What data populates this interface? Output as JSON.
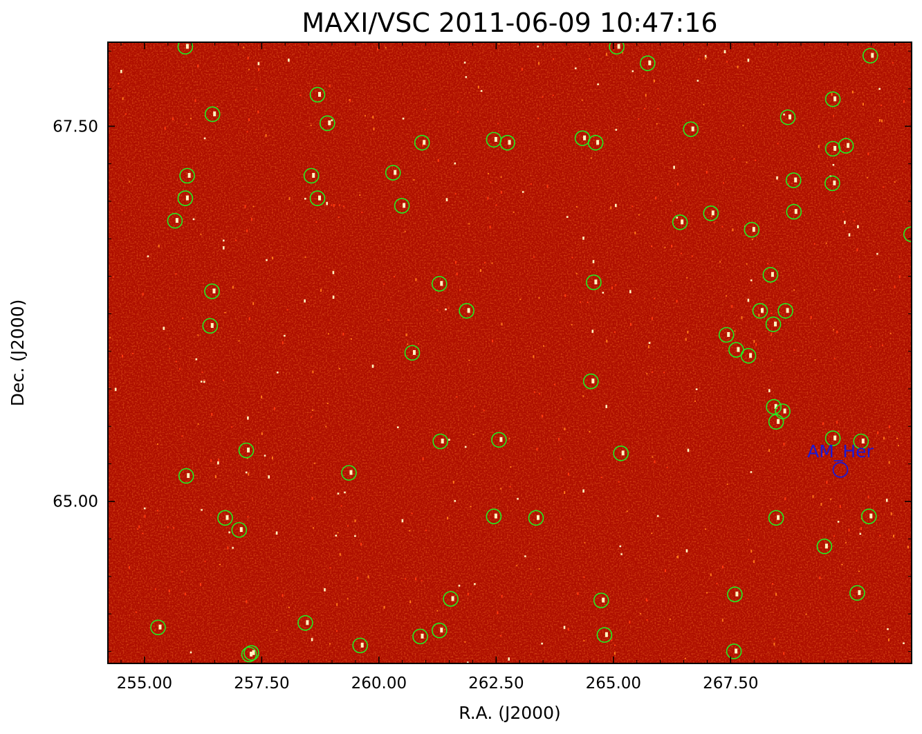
{
  "title": "MAXI/VSC 2011-06-09 10:47:16",
  "xlabel": "R.A. (J2000)",
  "ylabel": "Dec. (J2000)",
  "colors": {
    "background_field": "#b01000",
    "marker_default": "#22ee22",
    "marker_highlight": "#1a1ad8",
    "hot_pixel": "#fff5c0"
  },
  "chart_data": {
    "type": "scatter",
    "xlim": [
      254.22,
      271.36
    ],
    "ylim": [
      63.92,
      68.06
    ],
    "x_ticks": [
      {
        "value": 255.0,
        "label": "255.00"
      },
      {
        "value": 257.5,
        "label": "257.50"
      },
      {
        "value": 260.0,
        "label": "260.00"
      },
      {
        "value": 262.5,
        "label": "262.50"
      },
      {
        "value": 265.0,
        "label": "265.00"
      },
      {
        "value": 267.5,
        "label": "267.50"
      }
    ],
    "y_ticks": [
      {
        "value": 65.0,
        "label": "65.00"
      },
      {
        "value": 67.5,
        "label": "67.50"
      }
    ],
    "labeled_sources": [
      {
        "name": "AM_Her",
        "ra": 269.84,
        "dec": 65.21
      }
    ],
    "catalog_sources": [
      [
        255.87,
        68.03
      ],
      [
        256.45,
        67.58
      ],
      [
        258.69,
        67.71
      ],
      [
        258.9,
        67.52
      ],
      [
        260.92,
        67.39
      ],
      [
        262.45,
        67.41
      ],
      [
        262.74,
        67.39
      ],
      [
        264.34,
        67.42
      ],
      [
        264.62,
        67.39
      ],
      [
        265.07,
        68.03
      ],
      [
        265.73,
        67.92
      ],
      [
        266.65,
        67.48
      ],
      [
        268.72,
        67.56
      ],
      [
        269.68,
        67.68
      ],
      [
        269.68,
        67.35
      ],
      [
        269.96,
        67.37
      ],
      [
        270.48,
        67.97
      ],
      [
        255.91,
        67.17
      ],
      [
        255.87,
        67.02
      ],
      [
        255.65,
        66.87
      ],
      [
        258.56,
        67.17
      ],
      [
        258.69,
        67.02
      ],
      [
        260.3,
        67.19
      ],
      [
        260.49,
        66.97
      ],
      [
        266.42,
        66.86
      ],
      [
        267.08,
        66.92
      ],
      [
        267.95,
        66.81
      ],
      [
        268.85,
        66.93
      ],
      [
        269.67,
        67.12
      ],
      [
        268.84,
        67.14
      ],
      [
        271.35,
        66.78
      ],
      [
        256.44,
        66.4
      ],
      [
        256.4,
        66.17
      ],
      [
        261.29,
        66.45
      ],
      [
        261.87,
        66.27
      ],
      [
        264.58,
        66.46
      ],
      [
        268.35,
        66.51
      ],
      [
        267.62,
        66.01
      ],
      [
        268.13,
        66.27
      ],
      [
        268.41,
        66.18
      ],
      [
        268.67,
        66.27
      ],
      [
        267.41,
        66.11
      ],
      [
        267.88,
        65.97
      ],
      [
        264.52,
        65.8
      ],
      [
        260.71,
        65.99
      ],
      [
        268.42,
        65.63
      ],
      [
        268.61,
        65.6
      ],
      [
        268.47,
        65.53
      ],
      [
        269.68,
        65.42
      ],
      [
        270.28,
        65.4
      ],
      [
        257.17,
        65.34
      ],
      [
        255.89,
        65.17
      ],
      [
        259.36,
        65.19
      ],
      [
        261.31,
        65.4
      ],
      [
        262.56,
        65.41
      ],
      [
        265.16,
        65.32
      ],
      [
        256.72,
        64.89
      ],
      [
        257.02,
        64.81
      ],
      [
        262.45,
        64.9
      ],
      [
        263.35,
        64.89
      ],
      [
        268.47,
        64.89
      ],
      [
        269.5,
        64.7
      ],
      [
        270.45,
        64.9
      ],
      [
        261.53,
        64.35
      ],
      [
        264.74,
        64.34
      ],
      [
        267.59,
        64.38
      ],
      [
        270.2,
        64.39
      ],
      [
        255.29,
        64.16
      ],
      [
        258.43,
        64.19
      ],
      [
        259.6,
        64.04
      ],
      [
        260.88,
        64.1
      ],
      [
        261.29,
        64.14
      ],
      [
        264.81,
        64.11
      ],
      [
        257.23,
        63.98
      ],
      [
        257.28,
        63.99
      ],
      [
        267.57,
        64.0
      ]
    ]
  }
}
